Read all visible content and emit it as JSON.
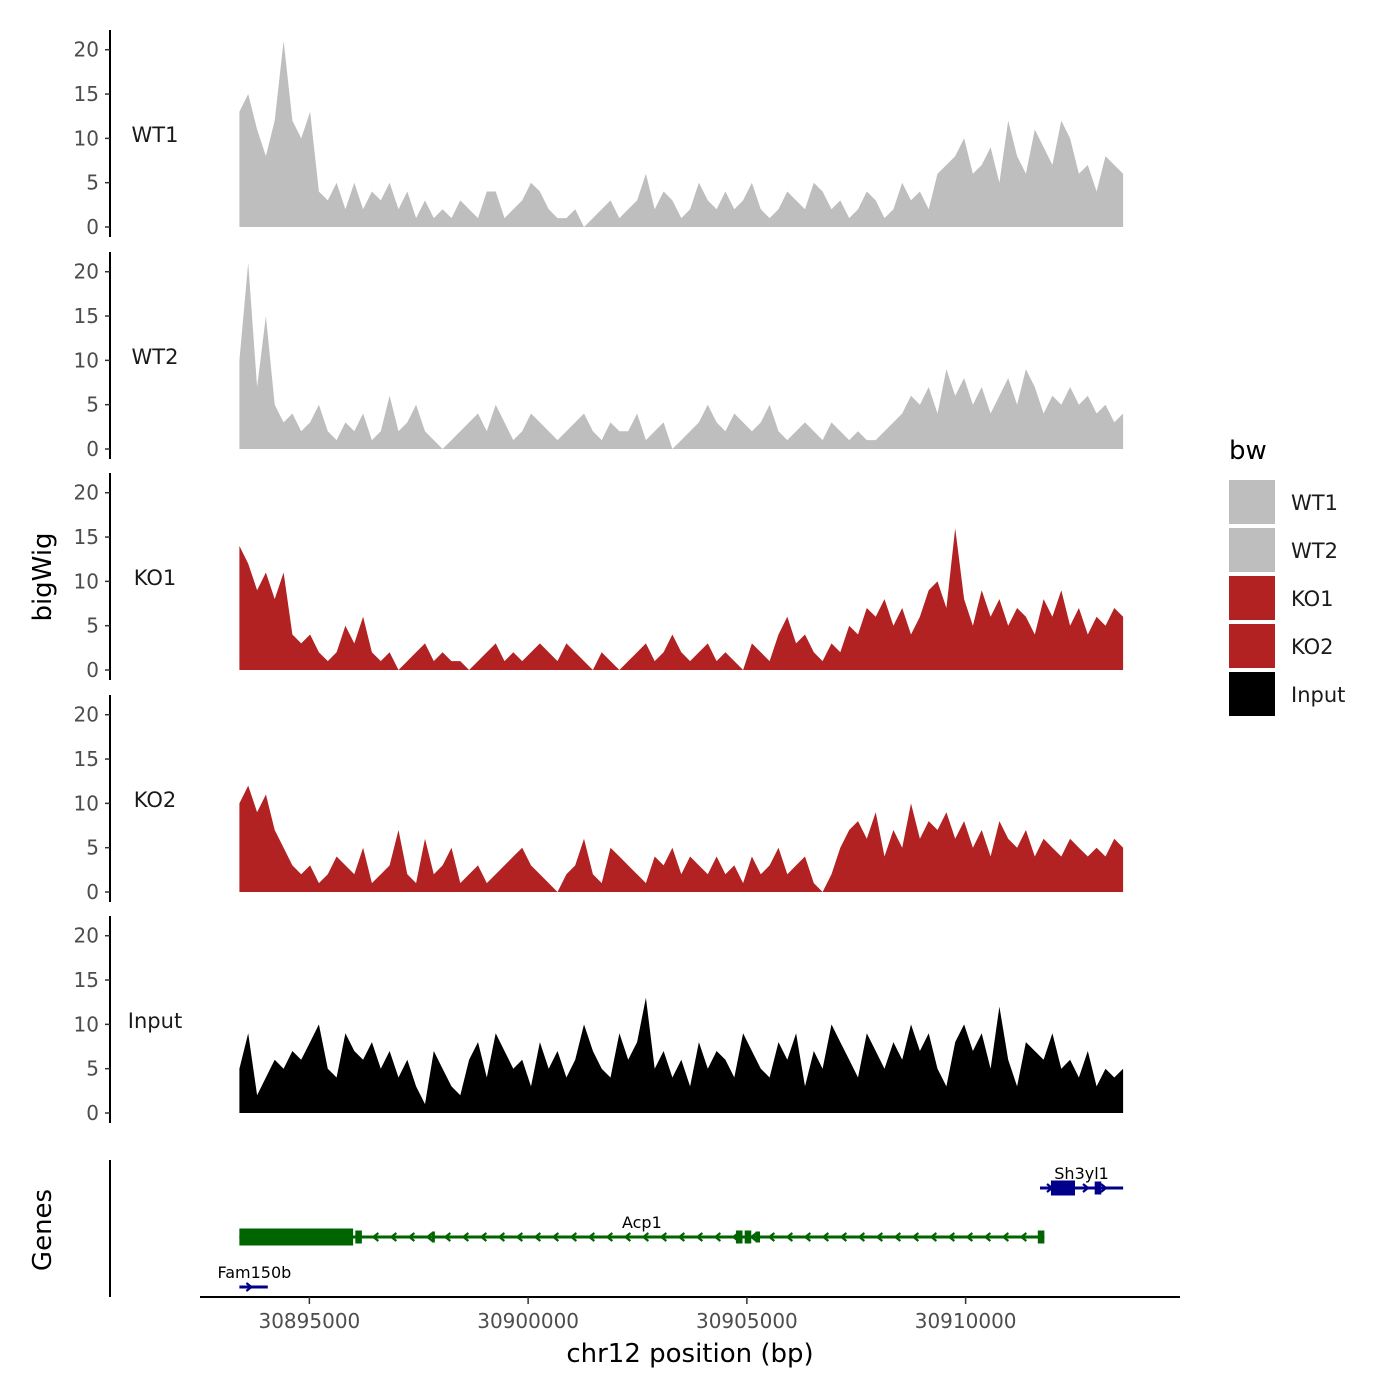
{
  "chart_data": {
    "type": "area",
    "y_axis_title": "bigWig",
    "x_axis_title": "chr12 position (bp)",
    "genes_axis_title": "Genes",
    "chromosome": "chr12",
    "x_range": [
      30892500,
      30914900
    ],
    "data_x_range": [
      30893400,
      30913600
    ],
    "y_range": [
      0,
      22
    ],
    "y_ticks": [
      0,
      5,
      10,
      15,
      20
    ],
    "x_ticks": [
      30895000,
      30900000,
      30905000,
      30910000
    ],
    "legend": {
      "title": "bw",
      "entries": [
        {
          "label": "WT1",
          "color": "#bebebe"
        },
        {
          "label": "WT2",
          "color": "#bebebe"
        },
        {
          "label": "KO1",
          "color": "#b22222"
        },
        {
          "label": "KO2",
          "color": "#b22222"
        },
        {
          "label": "Input",
          "color": "#000000"
        }
      ]
    },
    "series": [
      {
        "name": "WT1",
        "color": "#bebebe",
        "values": [
          13,
          15,
          11,
          8,
          12,
          21,
          12,
          10,
          13,
          4,
          3,
          5,
          2,
          5,
          2,
          4,
          3,
          5,
          2,
          4,
          1,
          3,
          1,
          2,
          1,
          3,
          2,
          1,
          4,
          4,
          1,
          2,
          3,
          5,
          4,
          2,
          1,
          1,
          2,
          0,
          1,
          2,
          3,
          1,
          2,
          3,
          6,
          2,
          4,
          3,
          1,
          2,
          5,
          3,
          2,
          4,
          2,
          3,
          5,
          2,
          1,
          2,
          4,
          3,
          2,
          5,
          4,
          2,
          3,
          1,
          2,
          4,
          3,
          1,
          2,
          5,
          3,
          4,
          2,
          6,
          7,
          8,
          10,
          6,
          7,
          9,
          5,
          12,
          8,
          6,
          11,
          9,
          7,
          12,
          10,
          6,
          7,
          4,
          8,
          7,
          6
        ]
      },
      {
        "name": "WT2",
        "color": "#bebebe",
        "values": [
          10,
          21,
          7,
          15,
          5,
          3,
          4,
          2,
          3,
          5,
          2,
          1,
          3,
          2,
          4,
          1,
          2,
          6,
          2,
          3,
          5,
          2,
          1,
          0,
          1,
          2,
          3,
          4,
          2,
          5,
          3,
          1,
          2,
          4,
          3,
          2,
          1,
          2,
          3,
          4,
          2,
          1,
          3,
          2,
          2,
          4,
          1,
          2,
          3,
          0,
          1,
          2,
          3,
          5,
          3,
          2,
          4,
          3,
          2,
          3,
          5,
          2,
          1,
          2,
          3,
          2,
          1,
          3,
          2,
          1,
          2,
          1,
          1,
          2,
          3,
          4,
          6,
          5,
          7,
          4,
          9,
          6,
          8,
          5,
          7,
          4,
          6,
          8,
          5,
          9,
          7,
          4,
          6,
          5,
          7,
          5,
          6,
          4,
          5,
          3,
          4
        ]
      },
      {
        "name": "KO1",
        "color": "#b22222",
        "values": [
          14,
          12,
          9,
          11,
          8,
          11,
          4,
          3,
          4,
          2,
          1,
          2,
          5,
          3,
          6,
          2,
          1,
          2,
          0,
          1,
          2,
          3,
          1,
          2,
          1,
          1,
          0,
          1,
          2,
          3,
          1,
          2,
          1,
          2,
          3,
          2,
          1,
          3,
          2,
          1,
          0,
          2,
          1,
          0,
          1,
          2,
          3,
          1,
          2,
          4,
          2,
          1,
          2,
          3,
          1,
          2,
          1,
          0,
          3,
          2,
          1,
          4,
          6,
          3,
          4,
          2,
          1,
          3,
          2,
          5,
          4,
          7,
          6,
          8,
          5,
          7,
          4,
          6,
          9,
          10,
          7,
          16,
          8,
          5,
          9,
          6,
          8,
          5,
          7,
          6,
          4,
          8,
          6,
          9,
          5,
          7,
          4,
          6,
          5,
          7,
          6
        ]
      },
      {
        "name": "KO2",
        "color": "#b22222",
        "values": [
          10,
          12,
          9,
          11,
          7,
          5,
          3,
          2,
          3,
          1,
          2,
          4,
          3,
          2,
          5,
          1,
          2,
          3,
          7,
          2,
          1,
          6,
          2,
          3,
          5,
          1,
          2,
          3,
          1,
          2,
          3,
          4,
          5,
          3,
          2,
          1,
          0,
          2,
          3,
          6,
          2,
          1,
          5,
          4,
          3,
          2,
          1,
          4,
          3,
          5,
          2,
          4,
          3,
          2,
          4,
          2,
          3,
          1,
          4,
          2,
          3,
          5,
          2,
          3,
          4,
          1,
          0,
          2,
          5,
          7,
          8,
          6,
          9,
          4,
          7,
          5,
          10,
          6,
          8,
          7,
          9,
          6,
          8,
          5,
          7,
          4,
          8,
          6,
          5,
          7,
          4,
          6,
          5,
          4,
          6,
          5,
          4,
          5,
          4,
          6,
          5
        ]
      },
      {
        "name": "Input",
        "color": "#000000",
        "values": [
          5,
          9,
          2,
          4,
          6,
          5,
          7,
          6,
          8,
          10,
          5,
          4,
          9,
          7,
          6,
          8,
          5,
          7,
          4,
          6,
          3,
          1,
          7,
          5,
          3,
          2,
          6,
          8,
          4,
          9,
          7,
          5,
          6,
          3,
          8,
          5,
          7,
          4,
          6,
          10,
          7,
          5,
          4,
          9,
          6,
          8,
          13,
          5,
          7,
          4,
          6,
          3,
          8,
          5,
          7,
          6,
          4,
          9,
          7,
          5,
          4,
          8,
          6,
          9,
          3,
          7,
          5,
          10,
          8,
          6,
          4,
          9,
          7,
          5,
          8,
          6,
          10,
          7,
          9,
          5,
          3,
          8,
          10,
          7,
          9,
          5,
          12,
          6,
          3,
          8,
          7,
          6,
          9,
          5,
          6,
          4,
          7,
          3,
          5,
          4,
          5
        ]
      }
    ],
    "genes": [
      {
        "name": "Fam150b",
        "start": 30893400,
        "end": 30894050,
        "strand": "+",
        "color": "#00008b",
        "row": 1
      },
      {
        "name": "Acp1",
        "start": 30893400,
        "end": 30911800,
        "strand": "-",
        "color": "#006400",
        "row": 2
      },
      {
        "name": "Sh3yl1",
        "start": 30911700,
        "end": 30913600,
        "strand": "+",
        "color": "#00008b",
        "row": 3
      }
    ]
  }
}
